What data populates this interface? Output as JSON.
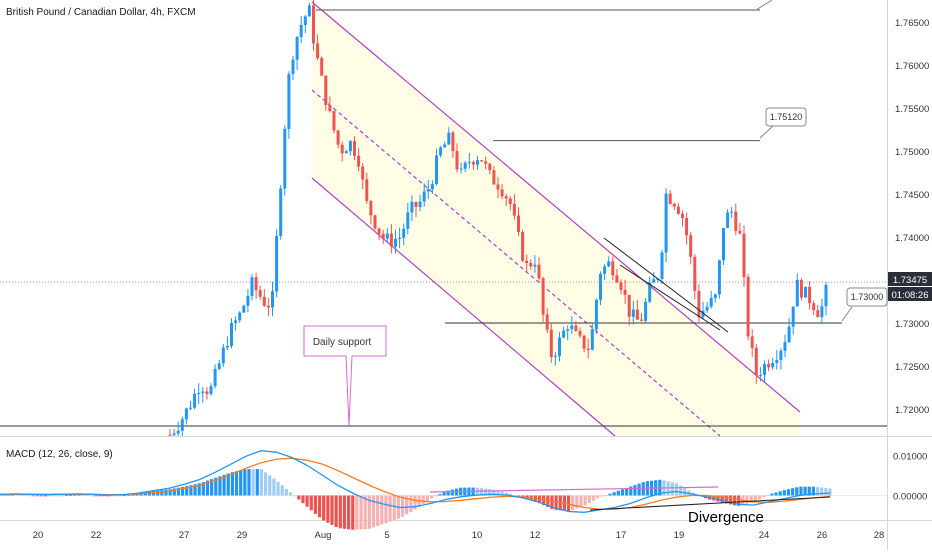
{
  "header": {
    "title": "British Pound / Canadian Dollar, 4h, FXCM"
  },
  "colors": {
    "up": "#2196f3",
    "down": "#ef5350",
    "channel_border": "#b040c8",
    "channel_fill": "#fffde6",
    "macd_line": "#2196f3",
    "signal_line": "#ff7a1a",
    "hist_pos_strong": "#2196f3",
    "hist_pos_weak": "#9fcdf3",
    "hist_neg_strong": "#ef5350",
    "hist_neg_weak": "#f6b1b1",
    "annotation": "#d66bd0"
  },
  "chart_data": [
    {
      "type": "candlestick",
      "symbol": "British Pound / Canadian Dollar, 4h, FXCM",
      "ylim": [
        1.7165,
        1.7668
      ],
      "y_ticks": [
        "1.76500",
        "1.76000",
        "1.75500",
        "1.75000",
        "1.74500",
        "1.74000",
        "1.73500",
        "1.73000",
        "1.72500",
        "1.72000"
      ],
      "x_ticks": [
        "20",
        "22",
        "27",
        "29",
        "Aug",
        "5",
        "10",
        "12",
        "17",
        "19",
        "24",
        "26",
        "28"
      ],
      "current_price": "1.73475",
      "countdown": "01:08:26",
      "price_labels": [
        "1.75120",
        "1.73000"
      ],
      "annotations": [
        "Daily support"
      ],
      "horizontal_levels": [
        1.7662,
        1.7512,
        1.73,
        1.7175,
        1.73475
      ]
    },
    {
      "type": "line",
      "title": "MACD (12, 26, close, 9)",
      "y_ticks": [
        "0.01000",
        "0.00000"
      ],
      "series": [
        {
          "name": "MACD",
          "values": [
            0.0003,
            0.0004,
            0.0003,
            0.0002,
            0.0003,
            0.0004,
            0.0003,
            0.0001,
            0.0002,
            0.0006,
            0.0012,
            0.0018,
            0.0028,
            0.004,
            0.0058,
            0.0078,
            0.0098,
            0.0112,
            0.0108,
            0.0095,
            0.0075,
            0.005,
            0.0025,
            0.0005,
            -0.0012,
            -0.0022,
            -0.003,
            -0.0028,
            -0.002,
            -0.001,
            -0.0003,
            0.0001,
            0.0003,
            0.0001,
            -0.0006,
            -0.0016,
            -0.003,
            -0.004,
            -0.0042,
            -0.0036,
            -0.003,
            -0.002,
            -0.0006,
            0.0006,
            0.001,
            0.0004,
            -0.0004,
            -0.0012,
            -0.0022,
            -0.0024,
            -0.0016,
            -0.0008,
            0.0,
            0.0004,
            0.0006
          ]
        },
        {
          "name": "Signal",
          "values": [
            0.0002,
            0.0003,
            0.0003,
            0.0003,
            0.0003,
            0.0003,
            0.0003,
            0.0002,
            0.0002,
            0.0004,
            0.0007,
            0.0011,
            0.0018,
            0.0026,
            0.0038,
            0.0052,
            0.0068,
            0.0082,
            0.0091,
            0.0093,
            0.0088,
            0.0078,
            0.0062,
            0.0044,
            0.0026,
            0.001,
            -0.0004,
            -0.0012,
            -0.0016,
            -0.0015,
            -0.0012,
            -0.0008,
            -0.0004,
            -0.0002,
            -0.0004,
            -0.0008,
            -0.0014,
            -0.0022,
            -0.003,
            -0.0034,
            -0.0034,
            -0.003,
            -0.0022,
            -0.0012,
            -0.0004,
            0.0,
            0.0,
            -0.0004,
            -0.001,
            -0.0016,
            -0.0017,
            -0.0014,
            -0.001,
            -0.0006,
            -0.0002
          ]
        }
      ],
      "annotations": [
        "Divergence"
      ]
    }
  ]
}
